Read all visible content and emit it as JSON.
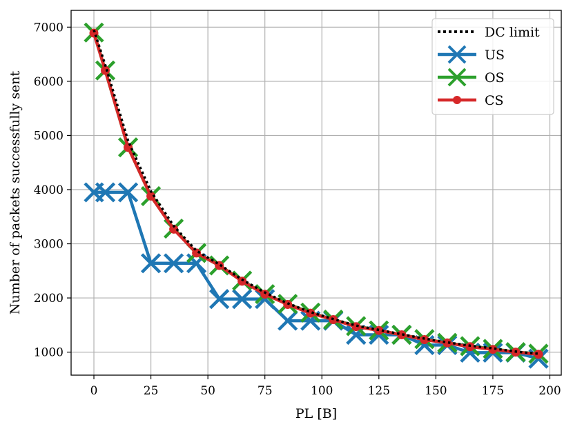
{
  "chart_data": {
    "type": "line",
    "title": "",
    "xlabel": "PL [B]",
    "ylabel": "Number of packets successfully sent",
    "xlim": [
      -10,
      205
    ],
    "ylim": [
      575,
      7310
    ],
    "xticks": [
      0,
      25,
      50,
      75,
      100,
      125,
      150,
      175,
      200
    ],
    "yticks": [
      1000,
      2000,
      3000,
      4000,
      5000,
      6000,
      7000
    ],
    "grid": true,
    "legend_position": "top-right",
    "series": [
      {
        "name": "DC limit",
        "style": "dotted",
        "color": "#000000",
        "x": [
          0,
          5,
          15,
          25,
          35,
          45,
          55,
          65,
          75,
          85,
          95,
          105,
          115,
          125,
          135,
          145,
          155,
          165,
          175,
          185,
          195
        ],
        "y": [
          6950,
          6300,
          4900,
          3970,
          3330,
          2870,
          2620,
          2340,
          2100,
          1900,
          1740,
          1610,
          1490,
          1410,
          1330,
          1250,
          1180,
          1120,
          1070,
          1010,
          970
        ]
      },
      {
        "name": "US",
        "style": "solid",
        "marker": "x",
        "color": "#1f77b4",
        "x": [
          0,
          5,
          15,
          25,
          35,
          45,
          55,
          65,
          75,
          85,
          95,
          105,
          115,
          125,
          135,
          145,
          155,
          165,
          175,
          185,
          195
        ],
        "y": [
          3950,
          3950,
          3950,
          2640,
          2640,
          2640,
          1980,
          1980,
          1980,
          1580,
          1580,
          1580,
          1320,
          1320,
          1320,
          1130,
          1130,
          990,
          990,
          990,
          880
        ]
      },
      {
        "name": "OS",
        "style": "solid",
        "marker": "x",
        "color": "#2ca02c",
        "x": [
          0,
          5,
          15,
          25,
          35,
          45,
          55,
          65,
          75,
          85,
          95,
          105,
          115,
          125,
          135,
          145,
          155,
          165,
          175,
          185,
          195
        ],
        "y": [
          6900,
          6200,
          4780,
          3880,
          3280,
          2830,
          2600,
          2320,
          2070,
          1890,
          1730,
          1600,
          1480,
          1400,
          1320,
          1240,
          1170,
          1110,
          1060,
          1000,
          970
        ]
      },
      {
        "name": "CS",
        "style": "solid",
        "marker": "o",
        "color": "#d62728",
        "x": [
          0,
          5,
          15,
          25,
          35,
          45,
          55,
          65,
          75,
          85,
          95,
          105,
          115,
          125,
          135,
          145,
          155,
          165,
          175,
          185,
          195
        ],
        "y": [
          6890,
          6200,
          4780,
          3880,
          3270,
          2830,
          2600,
          2310,
          2070,
          1880,
          1720,
          1600,
          1470,
          1400,
          1320,
          1230,
          1170,
          1100,
          1050,
          1000,
          960
        ]
      }
    ]
  }
}
